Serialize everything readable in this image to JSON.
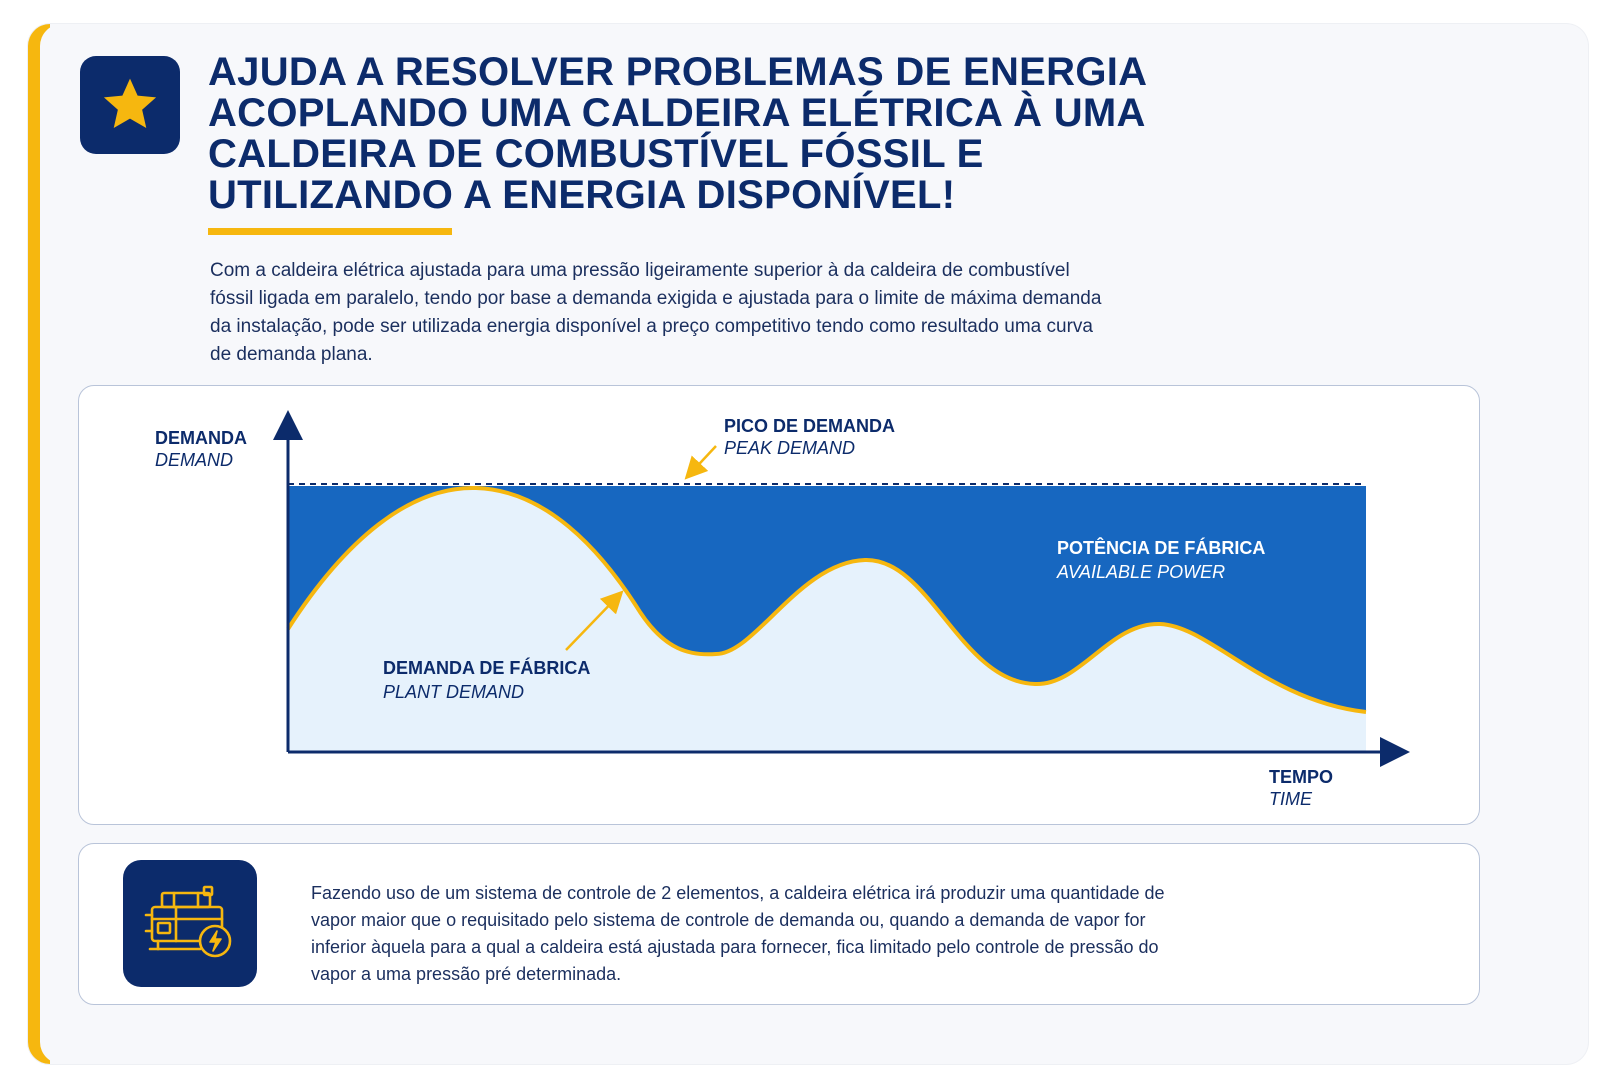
{
  "heading": {
    "lines": [
      "AJUDA A RESOLVER PROBLEMAS DE ENERGIA",
      "ACOPLANDO UMA CALDEIRA ELÉTRICA À UMA",
      "CALDEIRA DE COMBUSTÍVEL FÓSSIL E",
      "UTILIZANDO A ENERGIA DISPONÍVEL!"
    ],
    "icon": "star-icon"
  },
  "intro": {
    "lines": [
      "Com a caldeira elétrica ajustada para uma pressão ligeiramente superior à da caldeira de combustível",
      "fóssil ligada em paralelo, tendo por base a demanda exigida e ajustada para o limite de máxima demanda",
      "da instalação, pode ser utilizada energia disponível a preço competitivo tendo como resultado uma curva",
      "de demanda plana."
    ]
  },
  "diagram": {
    "y_axis": {
      "label": "DEMANDA",
      "label_en": "DEMAND"
    },
    "x_axis": {
      "label": "TEMPO",
      "label_en": "TIME"
    },
    "peak": {
      "label": "PICO DE DEMANDA",
      "label_en": "PEAK DEMAND"
    },
    "available": {
      "label": "POTÊNCIA DE FÁBRICA",
      "label_en": "AVAILABLE POWER"
    },
    "plant": {
      "label": "DEMANDA DE FÁBRICA",
      "label_en": "PLANT DEMAND"
    }
  },
  "info": {
    "icon": "electric-boiler-icon",
    "lines": [
      "Fazendo uso de um sistema de controle de 2 elementos, a caldeira elétrica irá produzir uma quantidade de",
      "vapor maior que o requisitado pelo sistema de controle de demanda ou, quando a demanda de vapor for",
      "inferior àquela para a qual a caldeira está ajustada para fornecer, fica limitado pelo controle de pressão do",
      "vapor a uma pressão pré determinada."
    ]
  },
  "colors": {
    "navy": "#0c2b6b",
    "accent_yellow": "#f6b70f",
    "available_blue": "#1767c0",
    "plant_fill": "#e6f2fc"
  }
}
